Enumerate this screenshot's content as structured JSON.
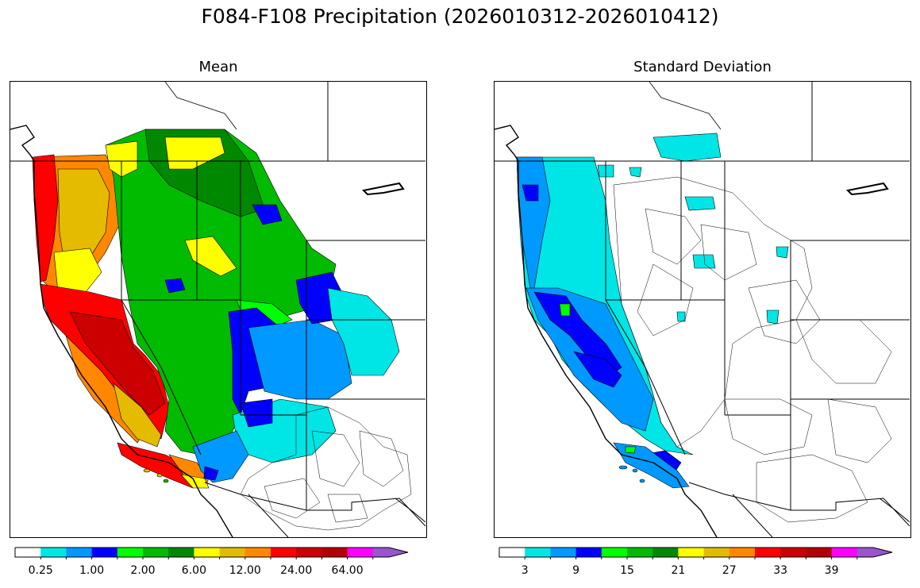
{
  "title": "F084-F108 Precipitation (2026010312-2026010412)",
  "panels": [
    {
      "id": "mean",
      "title": "Mean",
      "colorbar": {
        "colors": [
          "#ffffff",
          "#00e5e5",
          "#0099ff",
          "#0000ff",
          "#00ff00",
          "#00bb00",
          "#008800",
          "#ffff00",
          "#e5bb00",
          "#ff8800",
          "#ff0000",
          "#cc0000",
          "#b40000",
          "#ff00ff",
          "#9955cc"
        ],
        "tick_labels": [
          "0.25",
          "1.00",
          "2.00",
          "6.00",
          "12.00",
          "24.00",
          "64.00"
        ],
        "extend": "max"
      }
    },
    {
      "id": "std",
      "title": "Standard Deviation",
      "colorbar": {
        "colors": [
          "#ffffff",
          "#00e5e5",
          "#0099ff",
          "#0000ff",
          "#00ff00",
          "#00bb00",
          "#008800",
          "#ffff00",
          "#e5bb00",
          "#ff8800",
          "#ff0000",
          "#cc0000",
          "#b40000",
          "#ff00ff",
          "#9955cc"
        ],
        "tick_labels": [
          "3",
          "9",
          "15",
          "21",
          "27",
          "33",
          "39"
        ],
        "extend": "max"
      }
    }
  ]
}
